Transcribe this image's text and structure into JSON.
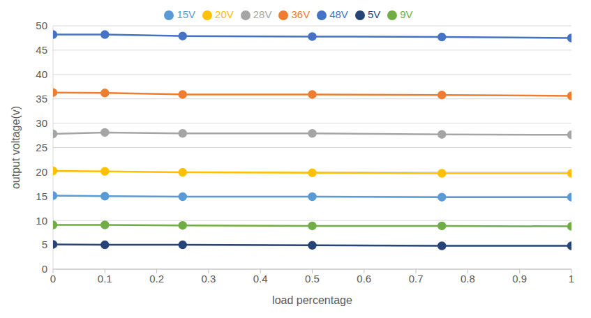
{
  "chart_data": {
    "type": "line",
    "x_label": "load percentage",
    "y_label": "output voltage(v)",
    "x": [
      0,
      0.1,
      0.25,
      0.5,
      0.75,
      1
    ],
    "xlim": [
      0,
      1
    ],
    "xticks": [
      0,
      0.1,
      0.2,
      0.3,
      0.4,
      0.5,
      0.6,
      0.7,
      0.8,
      0.9,
      1
    ],
    "ylim": [
      0,
      50
    ],
    "yticks": [
      0,
      5,
      10,
      15,
      20,
      25,
      30,
      35,
      40,
      45,
      50
    ],
    "grid": true,
    "legend": "top",
    "marker": "circle",
    "series": [
      {
        "name": "48V",
        "color": "#4472c4",
        "values": [
          48.2,
          48.2,
          47.9,
          47.8,
          47.7,
          47.5
        ]
      },
      {
        "name": "36V",
        "color": "#ed7d31",
        "values": [
          36.3,
          36.2,
          35.9,
          35.9,
          35.8,
          35.6
        ]
      },
      {
        "name": "28V",
        "color": "#a5a5a5",
        "values": [
          27.8,
          28.1,
          27.9,
          27.9,
          27.7,
          27.6
        ]
      },
      {
        "name": "20V",
        "color": "#ffc000",
        "values": [
          20.2,
          20.1,
          19.9,
          19.8,
          19.7,
          19.7
        ]
      },
      {
        "name": "15V",
        "color": "#5b9bd5",
        "values": [
          15.1,
          15.0,
          14.9,
          14.9,
          14.8,
          14.8
        ]
      },
      {
        "name": "9V",
        "color": "#70ad47",
        "values": [
          9.1,
          9.1,
          9.0,
          8.9,
          8.9,
          8.8
        ]
      },
      {
        "name": "5V",
        "color": "#264478",
        "values": [
          5.1,
          5.0,
          5.0,
          4.9,
          4.8,
          4.8
        ]
      }
    ]
  }
}
